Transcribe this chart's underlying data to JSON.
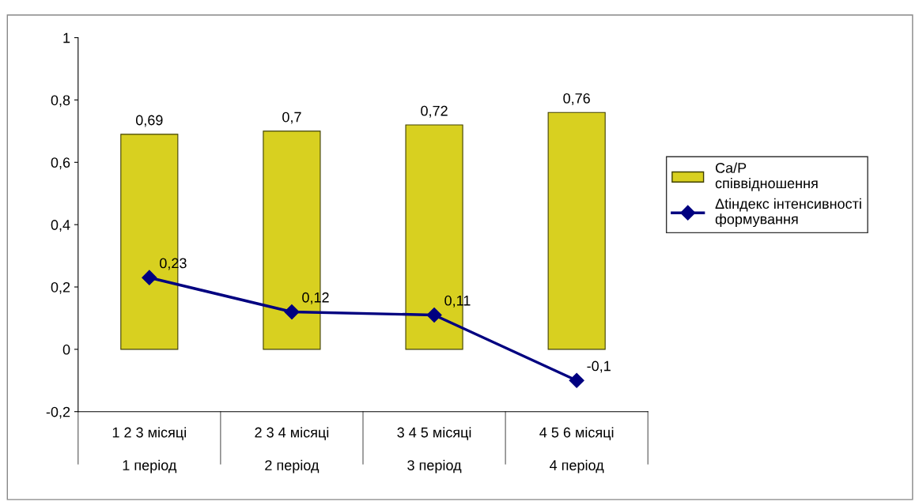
{
  "chart_data": {
    "type": "bar",
    "categories": [
      "1 2 3 місяці\n\n1 період",
      "2 3 4 місяці\n\n2 період",
      "3 4 5 місяці\n\n3 період",
      "4 5 6 місяці\n\n4 період"
    ],
    "series": [
      {
        "name": "Ca/P\nспіввідношення",
        "color": "#d8d020",
        "values": [
          0.69,
          0.7,
          0.72,
          0.76
        ],
        "value_labels": [
          "0,69",
          "0,7",
          "0,72",
          "0,76"
        ]
      },
      {
        "name": "Δtіндекс інтенсивності\nформування",
        "type": "line",
        "color": "#000080",
        "values": [
          0.23,
          0.12,
          0.11,
          -0.1
        ],
        "value_labels": [
          "0,23",
          "0,12",
          "0,11",
          "-0,1"
        ],
        "marker": "diamond"
      }
    ],
    "ylim": [
      -0.2,
      1
    ],
    "yticks": [
      {
        "value": -0.2,
        "label": "-0,2"
      },
      {
        "value": 0,
        "label": "0"
      },
      {
        "value": 0.2,
        "label": "0,2"
      },
      {
        "value": 0.4,
        "label": "0,4"
      },
      {
        "value": 0.6,
        "label": "0,6"
      },
      {
        "value": 0.8,
        "label": "0,8"
      },
      {
        "value": 1,
        "label": "1"
      }
    ],
    "legend": "right",
    "grid": false
  }
}
